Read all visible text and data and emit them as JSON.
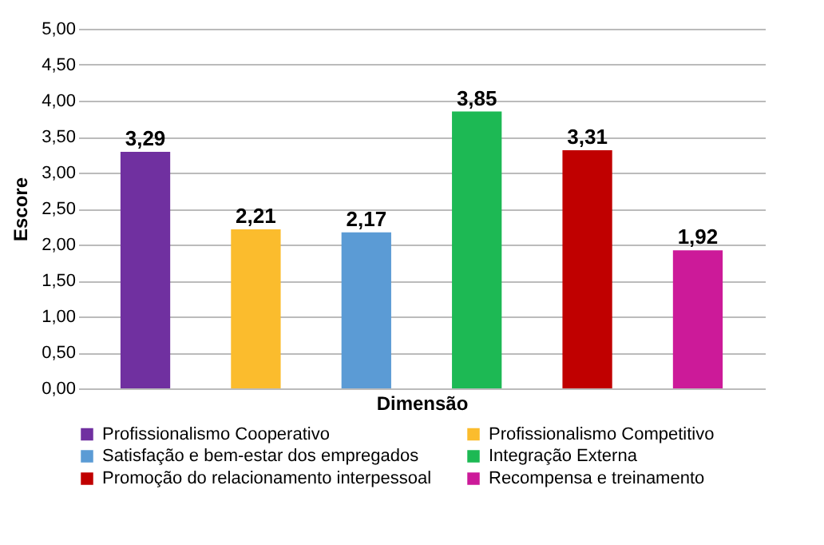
{
  "chart_data": {
    "type": "bar",
    "xlabel": "Dimensão",
    "ylabel": "Escore",
    "categories": [
      null
    ],
    "series": [
      {
        "name": "Profissionalismo Cooperativo",
        "color": "#7030a0",
        "values": [
          3.29
        ],
        "value_labels": [
          "3,29"
        ]
      },
      {
        "name": "Profissionalismo Competitivo",
        "color": "#fbbc2d",
        "values": [
          2.21
        ],
        "value_labels": [
          "2,21"
        ]
      },
      {
        "name": "Satisfação e bem-estar dos empregados",
        "color": "#5b9bd5",
        "values": [
          2.17
        ],
        "value_labels": [
          "2,17"
        ]
      },
      {
        "name": "Integração Externa",
        "color": "#1db954",
        "values": [
          3.85
        ],
        "value_labels": [
          "3,85"
        ]
      },
      {
        "name": "Promoção do relacionamento interpessoal",
        "color": "#c00000",
        "values": [
          3.31
        ],
        "value_labels": [
          "3,31"
        ]
      },
      {
        "name": "Recompensa e treinamento",
        "color": "#cc1a99",
        "values": [
          1.92
        ],
        "value_labels": [
          "1,92"
        ]
      }
    ],
    "ylim": [
      0,
      5
    ],
    "yticks": [
      {
        "value": 0,
        "label": "0,00"
      },
      {
        "value": 0.5,
        "label": "0,50"
      },
      {
        "value": 1,
        "label": "1,00"
      },
      {
        "value": 1.5,
        "label": "1,50"
      },
      {
        "value": 2,
        "label": "2,00"
      },
      {
        "value": 2.5,
        "label": "2,50"
      },
      {
        "value": 3,
        "label": "3,00"
      },
      {
        "value": 3.5,
        "label": "3,50"
      },
      {
        "value": 4,
        "label": "4,00"
      },
      {
        "value": 4.5,
        "label": "4,50"
      },
      {
        "value": 5,
        "label": "5,00"
      }
    ],
    "grid": "y",
    "legend": "bottom",
    "tick_labels": "y"
  }
}
